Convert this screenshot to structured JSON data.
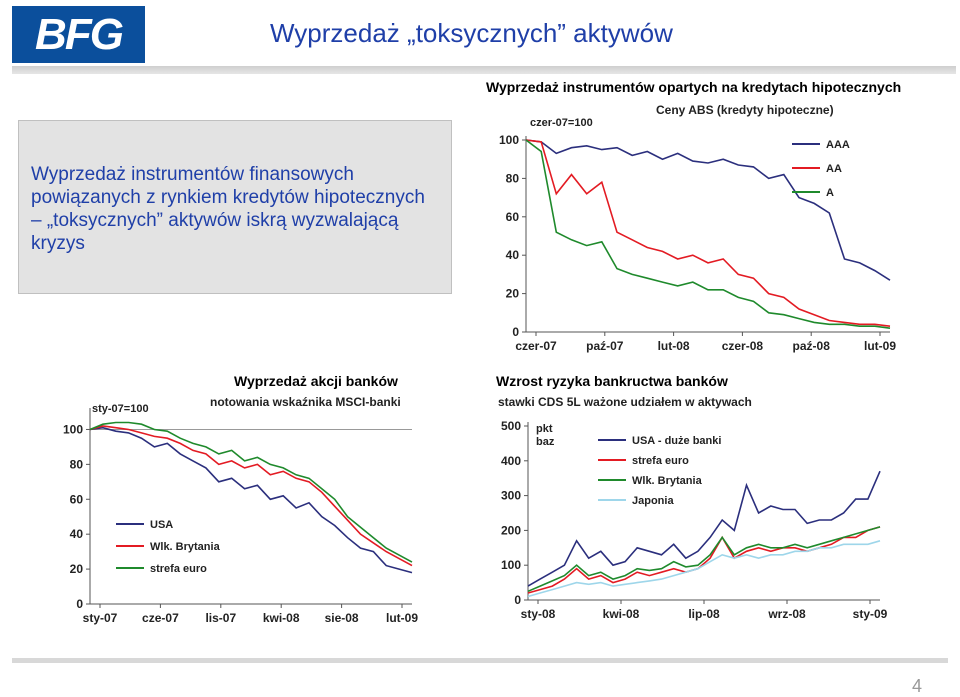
{
  "logo": {
    "text": "BFG"
  },
  "title": "Wyprzedaż „toksycznych” aktywów",
  "textbox": {
    "text": "Wyprzedaż instrumentów finansowych powiązanych z rynkiem kredytów hipotecznych – „toksycznych” aktywów iskrą wyzwalającą kryzys"
  },
  "page_number": "4",
  "colors": {
    "navy": "#2b2f7d",
    "red": "#e31b23",
    "green": "#1f8a2c",
    "lightblue": "#9ed6ea",
    "title_blue": "#1f3fa8"
  },
  "chart_data": [
    {
      "type": "line",
      "title": "Wyprzedaż instrumentów opartych na kredytach hipotecznych",
      "subtitle": "Ceny ABS (kredyty hipoteczne)",
      "note": "czer-07=100",
      "xlabel": "",
      "ylabel": "",
      "x_tick_labels": [
        "czer-07",
        "paź-07",
        "lut-08",
        "czer-08",
        "paź-08",
        "lut-09"
      ],
      "y_ticks": [
        0,
        20,
        40,
        60,
        80,
        100
      ],
      "ylim": [
        0,
        100
      ],
      "x_range": [
        0,
        24
      ],
      "grid": false,
      "legend_position": "top-right",
      "x": [
        0,
        1,
        2,
        3,
        4,
        5,
        6,
        7,
        8,
        9,
        10,
        11,
        12,
        13,
        14,
        15,
        16,
        17,
        18,
        19,
        20,
        21,
        22,
        23,
        24
      ],
      "series": [
        {
          "name": "AAA",
          "color": "#2b2f7d",
          "values": [
            100,
            99,
            93,
            96,
            97,
            95,
            96,
            92,
            94,
            90,
            93,
            89,
            88,
            90,
            87,
            86,
            80,
            82,
            70,
            67,
            62,
            38,
            36,
            32,
            27
          ]
        },
        {
          "name": "AA",
          "color": "#e31b23",
          "values": [
            100,
            99,
            72,
            82,
            72,
            78,
            52,
            48,
            44,
            42,
            38,
            40,
            36,
            38,
            30,
            28,
            20,
            18,
            12,
            9,
            6,
            5,
            4,
            4,
            3
          ]
        },
        {
          "name": "A",
          "color": "#1f8a2c",
          "values": [
            100,
            94,
            52,
            48,
            45,
            47,
            33,
            30,
            28,
            26,
            24,
            26,
            22,
            22,
            18,
            16,
            10,
            9,
            7,
            5,
            4,
            4,
            3,
            3,
            2
          ]
        }
      ]
    },
    {
      "type": "line",
      "title": "Wyprzedaż akcji banków",
      "subtitle": "notowania wskaźnika MSCI-banki",
      "note": "sty-07=100",
      "xlabel": "",
      "ylabel": "",
      "x_tick_labels": [
        "sty-07",
        "cze-07",
        "lis-07",
        "kwi-08",
        "sie-08",
        "lut-09"
      ],
      "y_ticks": [
        0,
        20,
        40,
        60,
        80,
        100
      ],
      "ylim": [
        0,
        110
      ],
      "x_range": [
        0,
        25
      ],
      "grid": false,
      "legend_position": "bottom-left",
      "x": [
        0,
        1,
        2,
        3,
        4,
        5,
        6,
        7,
        8,
        9,
        10,
        11,
        12,
        13,
        14,
        15,
        16,
        17,
        18,
        19,
        20,
        21,
        22,
        23,
        24,
        25
      ],
      "series": [
        {
          "name": "USA",
          "color": "#2b2f7d",
          "values": [
            100,
            101,
            99,
            98,
            95,
            90,
            92,
            86,
            82,
            78,
            70,
            72,
            66,
            68,
            60,
            62,
            55,
            58,
            50,
            45,
            38,
            32,
            30,
            22,
            20,
            18
          ]
        },
        {
          "name": "Wlk. Brytania",
          "color": "#e31b23",
          "values": [
            100,
            102,
            101,
            100,
            98,
            96,
            95,
            92,
            88,
            86,
            80,
            82,
            78,
            80,
            74,
            76,
            72,
            70,
            64,
            56,
            48,
            40,
            35,
            30,
            26,
            22
          ]
        },
        {
          "name": "strefa euro",
          "color": "#1f8a2c",
          "values": [
            100,
            103,
            104,
            104,
            103,
            100,
            99,
            95,
            92,
            90,
            86,
            88,
            82,
            84,
            80,
            78,
            74,
            72,
            66,
            60,
            50,
            44,
            38,
            32,
            28,
            24
          ]
        }
      ]
    },
    {
      "type": "line",
      "title": "Wzrost ryzyka bankructwa banków",
      "subtitle": "stawki CDS 5L ważone udziałem w aktywach",
      "ylabel": "pkt baz",
      "xlabel": "",
      "x_tick_labels": [
        "sty-08",
        "kwi-08",
        "lip-08",
        "wrz-08",
        "sty-09"
      ],
      "y_ticks": [
        0,
        100,
        200,
        300,
        400,
        500
      ],
      "ylim": [
        0,
        500
      ],
      "x_range": [
        0,
        29
      ],
      "grid": false,
      "legend_position": "top-left",
      "x": [
        0,
        1,
        2,
        3,
        4,
        5,
        6,
        7,
        8,
        9,
        10,
        11,
        12,
        13,
        14,
        15,
        16,
        17,
        18,
        19,
        20,
        21,
        22,
        23,
        24,
        25,
        26,
        27,
        28,
        29
      ],
      "series": [
        {
          "name": "USA - duże banki",
          "color": "#2b2f7d",
          "values": [
            40,
            60,
            80,
            100,
            170,
            120,
            140,
            100,
            110,
            150,
            140,
            130,
            160,
            120,
            140,
            180,
            230,
            200,
            330,
            250,
            270,
            260,
            260,
            220,
            230,
            230,
            250,
            290,
            290,
            370
          ]
        },
        {
          "name": "strefa euro",
          "color": "#e31b23",
          "values": [
            20,
            30,
            40,
            60,
            90,
            60,
            70,
            50,
            60,
            80,
            70,
            80,
            90,
            80,
            90,
            120,
            180,
            120,
            140,
            150,
            140,
            150,
            150,
            140,
            150,
            160,
            180,
            180,
            200,
            210
          ]
        },
        {
          "name": "Wlk. Brytania",
          "color": "#1f8a2c",
          "values": [
            25,
            40,
            55,
            70,
            100,
            70,
            80,
            60,
            70,
            90,
            85,
            90,
            110,
            95,
            100,
            130,
            180,
            130,
            150,
            160,
            150,
            150,
            160,
            150,
            160,
            170,
            180,
            190,
            200,
            210
          ]
        },
        {
          "name": "Japonia",
          "color": "#9ed6ea",
          "values": [
            10,
            20,
            30,
            40,
            50,
            45,
            50,
            40,
            45,
            50,
            55,
            60,
            70,
            80,
            90,
            110,
            130,
            120,
            130,
            120,
            130,
            130,
            140,
            140,
            150,
            150,
            160,
            160,
            160,
            170
          ]
        }
      ]
    }
  ]
}
